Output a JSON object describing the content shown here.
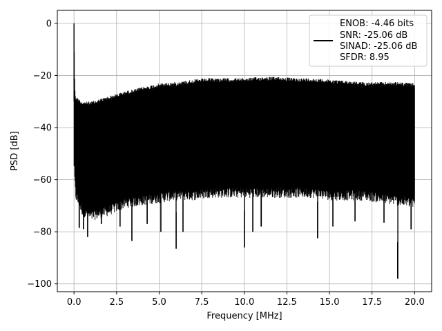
{
  "chart_data": {
    "type": "line",
    "title": "",
    "xlabel": "Frequency [MHz]",
    "ylabel": "PSD [dB]",
    "xlim": [
      -0.98,
      21.0
    ],
    "ylim": [
      -103,
      5
    ],
    "xticks": [
      0.0,
      2.5,
      5.0,
      7.5,
      10.0,
      12.5,
      15.0,
      17.5,
      20.0
    ],
    "xtick_labels": [
      "0.0",
      "2.5",
      "5.0",
      "7.5",
      "10.0",
      "12.5",
      "15.0",
      "17.5",
      "20.0"
    ],
    "yticks": [
      0,
      -20,
      -40,
      -60,
      -80,
      -100
    ],
    "ytick_labels": [
      "0",
      "−20",
      "−40",
      "−60",
      "−80",
      "−100"
    ],
    "grid": true,
    "legend_position": "top-right",
    "line_color": "#000000",
    "series": [
      {
        "legend_lines": [
          "ENOB: -4.46 bits",
          "SNR: -25.06 dB",
          "SINAD: -25.06 dB",
          "SFDR: 8.95"
        ],
        "envelope": {
          "x": [
            0.0,
            0.05,
            0.1,
            0.5,
            1.0,
            2.0,
            3.0,
            4.0,
            5.0,
            6.0,
            7.0,
            8.0,
            9.0,
            10.0,
            11.0,
            12.0,
            13.0,
            14.0,
            15.0,
            16.0,
            17.0,
            18.0,
            19.0,
            20.0
          ],
          "upper": [
            0.0,
            -25.0,
            -28.0,
            -30.0,
            -30.0,
            -28.0,
            -26.0,
            -24.5,
            -23.0,
            -22.5,
            -21.5,
            -21.0,
            -21.0,
            -21.0,
            -20.5,
            -20.5,
            -21.0,
            -21.0,
            -21.5,
            -22.0,
            -22.5,
            -22.5,
            -22.5,
            -23.0
          ],
          "lower": [
            -56.0,
            -63.0,
            -68.0,
            -74.0,
            -76.0,
            -74.0,
            -71.0,
            -70.0,
            -69.0,
            -68.0,
            -68.0,
            -67.0,
            -67.0,
            -67.0,
            -67.0,
            -67.0,
            -67.0,
            -67.0,
            -68.0,
            -68.0,
            -68.0,
            -69.0,
            -70.0,
            -71.0
          ]
        },
        "dips": [
          {
            "x": 0.3,
            "y": -78.5
          },
          {
            "x": 0.55,
            "y": -79.0
          },
          {
            "x": 0.8,
            "y": -82.0
          },
          {
            "x": 1.6,
            "y": -77.0
          },
          {
            "x": 2.7,
            "y": -78.0
          },
          {
            "x": 3.4,
            "y": -83.5
          },
          {
            "x": 4.3,
            "y": -77.0
          },
          {
            "x": 5.1,
            "y": -80.0
          },
          {
            "x": 6.0,
            "y": -86.5
          },
          {
            "x": 6.4,
            "y": -80.0
          },
          {
            "x": 10.0,
            "y": -86.0
          },
          {
            "x": 10.5,
            "y": -80.0
          },
          {
            "x": 11.0,
            "y": -78.0
          },
          {
            "x": 14.3,
            "y": -82.5
          },
          {
            "x": 15.2,
            "y": -78.0
          },
          {
            "x": 16.5,
            "y": -76.0
          },
          {
            "x": 18.2,
            "y": -76.5
          },
          {
            "x": 19.0,
            "y": -98.0
          },
          {
            "x": 19.8,
            "y": -79.0
          }
        ]
      }
    ]
  }
}
